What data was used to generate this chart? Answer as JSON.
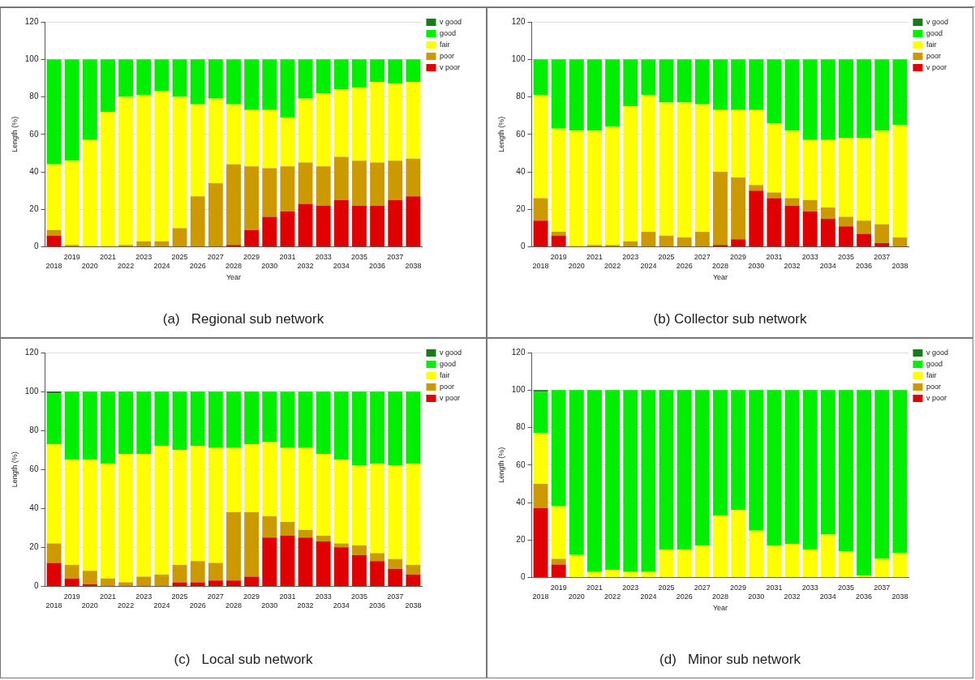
{
  "chart_data": [
    {
      "type": "bar",
      "title": "(a)   Regional sub network",
      "xlabel": "Year",
      "ylabel": "Length (%)",
      "stacked": true,
      "legend": "right",
      "grid": "y",
      "ylim": [
        0,
        120
      ],
      "yticks": [
        0,
        20,
        40,
        60,
        80,
        100,
        120
      ],
      "categories": [
        "2018",
        "2019",
        "2020",
        "2021",
        "2022",
        "2023",
        "2024",
        "2025",
        "2026",
        "2027",
        "2028",
        "2029",
        "2030",
        "2031",
        "2032",
        "2033",
        "2034",
        "2035",
        "2036",
        "2037",
        "2038"
      ],
      "series": [
        {
          "name": "v poor",
          "color": "#e00000",
          "values": [
            6,
            0,
            0,
            0,
            0,
            0,
            0,
            0,
            0,
            0,
            1,
            9,
            16,
            19,
            23,
            22,
            25,
            22,
            22,
            25,
            27
          ]
        },
        {
          "name": "poor",
          "color": "#cc9900",
          "values": [
            3,
            1,
            0,
            0,
            1,
            3,
            3,
            10,
            27,
            34,
            43,
            34,
            26,
            24,
            22,
            21,
            23,
            24,
            23,
            21,
            20
          ]
        },
        {
          "name": "fair",
          "color": "#ffff00",
          "values": [
            35,
            45,
            57,
            72,
            79,
            78,
            80,
            70,
            49,
            45,
            32,
            30,
            31,
            26,
            34,
            39,
            36,
            39,
            43,
            41,
            41
          ]
        },
        {
          "name": "good",
          "color": "#00ee00",
          "values": [
            56,
            54,
            43,
            28,
            20,
            19,
            17,
            20,
            24,
            21,
            24,
            27,
            27,
            31,
            21,
            18,
            16,
            15,
            12,
            13,
            12
          ]
        },
        {
          "name": "v good",
          "color": "#1a7a1a",
          "values": [
            0,
            0,
            0,
            0,
            0,
            0,
            0,
            0,
            0,
            0,
            0,
            0,
            0,
            0,
            0,
            0,
            0,
            0,
            0,
            0,
            0
          ]
        }
      ]
    },
    {
      "type": "bar",
      "title": "(b) Collector sub network",
      "xlabel": "Year",
      "ylabel": "Length (%)",
      "stacked": true,
      "legend": "right",
      "grid": "y",
      "ylim": [
        0,
        120
      ],
      "yticks": [
        0,
        20,
        40,
        60,
        80,
        100,
        120
      ],
      "categories": [
        "2018",
        "2019",
        "2020",
        "2021",
        "2022",
        "2023",
        "2024",
        "2025",
        "2026",
        "2027",
        "2028",
        "2029",
        "2030",
        "2031",
        "2032",
        "2033",
        "2034",
        "2035",
        "2036",
        "2037",
        "2038"
      ],
      "series": [
        {
          "name": "v poor",
          "color": "#e00000",
          "values": [
            14,
            6,
            0,
            0,
            0,
            0,
            0,
            0,
            0,
            0,
            1,
            4,
            30,
            26,
            22,
            19,
            15,
            11,
            7,
            2,
            0
          ]
        },
        {
          "name": "poor",
          "color": "#cc9900",
          "values": [
            12,
            2,
            0,
            1,
            1,
            3,
            8,
            6,
            5,
            8,
            39,
            33,
            3,
            3,
            4,
            6,
            6,
            5,
            7,
            10,
            5
          ]
        },
        {
          "name": "fair",
          "color": "#ffff00",
          "values": [
            55,
            55,
            62,
            61,
            63,
            72,
            73,
            71,
            72,
            68,
            33,
            36,
            40,
            37,
            36,
            32,
            36,
            42,
            44,
            50,
            60
          ]
        },
        {
          "name": "good",
          "color": "#00ee00",
          "values": [
            19,
            37,
            38,
            38,
            36,
            25,
            19,
            23,
            23,
            24,
            27,
            27,
            27,
            34,
            38,
            43,
            43,
            42,
            42,
            38,
            35
          ]
        },
        {
          "name": "v good",
          "color": "#1a7a1a",
          "values": [
            0,
            0,
            0,
            0,
            0,
            0,
            0,
            0,
            0,
            0,
            0,
            0,
            0,
            0,
            0,
            0,
            0,
            0,
            0,
            0,
            0
          ]
        }
      ]
    },
    {
      "type": "bar",
      "title": "(c)   Local sub network",
      "ylabel": "Length (%)",
      "stacked": true,
      "legend": "right",
      "grid": "y",
      "ylim": [
        0,
        120
      ],
      "yticks": [
        0,
        20,
        40,
        60,
        80,
        100,
        120
      ],
      "categories": [
        "2018",
        "2019",
        "2020",
        "2021",
        "2022",
        "2023",
        "2024",
        "2025",
        "2026",
        "2027",
        "2028",
        "2029",
        "2030",
        "2031",
        "2032",
        "2033",
        "2034",
        "2035",
        "2036",
        "2037",
        "2038"
      ],
      "series": [
        {
          "name": "v poor",
          "color": "#e00000",
          "values": [
            12,
            4,
            1,
            0,
            0,
            0,
            0,
            2,
            2,
            3,
            3,
            5,
            25,
            26,
            25,
            23,
            20,
            16,
            13,
            9,
            6
          ]
        },
        {
          "name": "poor",
          "color": "#cc9900",
          "values": [
            10,
            7,
            7,
            4,
            2,
            5,
            6,
            9,
            11,
            9,
            35,
            33,
            11,
            7,
            4,
            3,
            2,
            5,
            4,
            5,
            5
          ]
        },
        {
          "name": "fair",
          "color": "#ffff00",
          "values": [
            51,
            54,
            57,
            59,
            66,
            63,
            66,
            59,
            59,
            59,
            33,
            35,
            38,
            38,
            42,
            42,
            43,
            41,
            46,
            48,
            52
          ]
        },
        {
          "name": "good",
          "color": "#00ee00",
          "values": [
            26,
            35,
            35,
            37,
            32,
            32,
            28,
            30,
            28,
            29,
            29,
            27,
            26,
            29,
            29,
            32,
            35,
            38,
            37,
            38,
            37
          ]
        },
        {
          "name": "v good",
          "color": "#1a7a1a",
          "values": [
            1,
            0,
            0,
            0,
            0,
            0,
            0,
            0,
            0,
            0,
            0,
            0,
            0,
            0,
            0,
            0,
            0,
            0,
            0,
            0,
            0
          ]
        }
      ]
    },
    {
      "type": "bar",
      "title": "(d)   Minor sub network",
      "xlabel": "Year",
      "ylabel": "Length (%)",
      "stacked": true,
      "legend": "right",
      "grid": "y",
      "ylim": [
        0,
        120
      ],
      "yticks": [
        0,
        20,
        40,
        60,
        80,
        100,
        120
      ],
      "categories": [
        "2018",
        "2019",
        "2020",
        "2021",
        "2022",
        "2023",
        "2024",
        "2025",
        "2026",
        "2027",
        "2028",
        "2029",
        "2030",
        "2031",
        "2032",
        "2033",
        "2034",
        "2035",
        "2036",
        "2037",
        "2038"
      ],
      "series": [
        {
          "name": "v poor",
          "color": "#e00000",
          "values": [
            37,
            7,
            0,
            0,
            0,
            0,
            0,
            0,
            0,
            0,
            0,
            0,
            0,
            0,
            0,
            0,
            0,
            0,
            0,
            0,
            0
          ]
        },
        {
          "name": "poor",
          "color": "#cc9900",
          "values": [
            13,
            3,
            0,
            0,
            0,
            0,
            0,
            0,
            0,
            0,
            0,
            0,
            0,
            0,
            0,
            0,
            0,
            0,
            0,
            0,
            0
          ]
        },
        {
          "name": "fair",
          "color": "#ffff00",
          "values": [
            27,
            28,
            12,
            3,
            4,
            3,
            3,
            15,
            15,
            17,
            33,
            36,
            25,
            17,
            18,
            15,
            23,
            14,
            1,
            10,
            13
          ]
        },
        {
          "name": "good",
          "color": "#00ee00",
          "values": [
            22,
            62,
            88,
            97,
            96,
            97,
            97,
            85,
            85,
            83,
            67,
            64,
            75,
            83,
            82,
            85,
            77,
            86,
            99,
            90,
            87
          ]
        },
        {
          "name": "v good",
          "color": "#1a7a1a",
          "values": [
            1,
            0,
            0,
            0,
            0,
            0,
            0,
            0,
            0,
            0,
            0,
            0,
            0,
            0,
            0,
            0,
            0,
            0,
            0,
            0,
            0
          ]
        }
      ]
    }
  ]
}
